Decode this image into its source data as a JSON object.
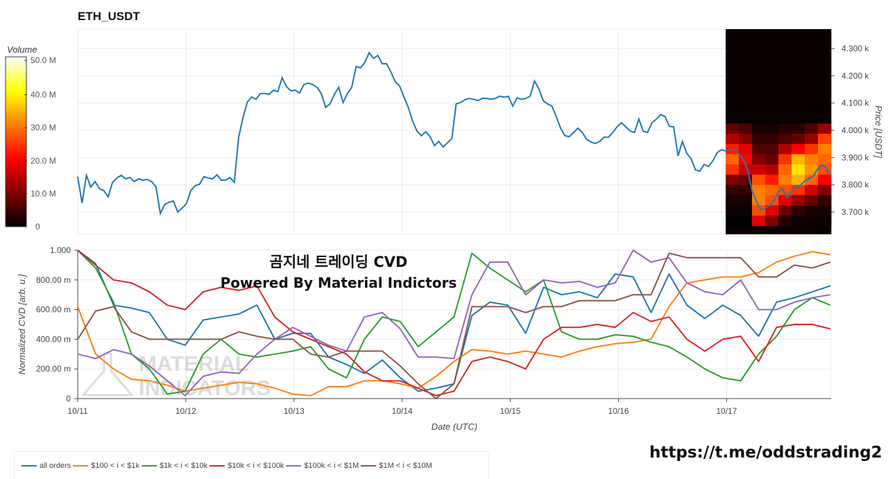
{
  "title": "ETH_USDT",
  "overlay_title": "곰지네 트레이딩 CVD",
  "overlay_subtitle": "Powered By Material Indictors",
  "watermark": "MATERIAL INDICATORS",
  "url": "https://t.me/oddstrading2",
  "colors": {
    "all": "#1f77b4",
    "o": "#ff7f0e",
    "g": "#2ca02c",
    "r": "#d62728",
    "p": "#9467bd",
    "b": "#8c564b"
  },
  "chart_data": [
    {
      "type": "line",
      "title": "ETH_USDT",
      "ylabel": "Price [USDT]",
      "x_range_hours": [
        0,
        167
      ],
      "x_start": "10/11",
      "ylim": [
        3630,
        4370
      ],
      "yticks": [
        3700,
        3800,
        3900,
        4000,
        4100,
        4200,
        4300
      ],
      "ytick_labels": [
        "3.700 k",
        "3.800 k",
        "3.900 k",
        "4.000 k",
        "4.100 k",
        "4.200 k",
        "4.300 k"
      ],
      "values": [
        3830,
        3733,
        3835,
        3792,
        3812,
        3786,
        3779,
        3756,
        3809,
        3825,
        3835,
        3822,
        3827,
        3812,
        3822,
        3817,
        3820,
        3812,
        3792,
        3695,
        3728,
        3736,
        3741,
        3700,
        3715,
        3731,
        3779,
        3797,
        3802,
        3830,
        3825,
        3822,
        3837,
        3817,
        3817,
        3827,
        3809,
        3975,
        4046,
        4104,
        4122,
        4114,
        4135,
        4135,
        4132,
        4147,
        4142,
        4193,
        4160,
        4145,
        4147,
        4137,
        4168,
        4173,
        4168,
        4158,
        4135,
        4084,
        4097,
        4132,
        4158,
        4102,
        4135,
        4158,
        4234,
        4229,
        4249,
        4285,
        4264,
        4275,
        4244,
        4244,
        4214,
        4178,
        4163,
        4122,
        4084,
        4033,
        3997,
        3980,
        3995,
        3977,
        3944,
        3959,
        3939,
        3954,
        3970,
        4097,
        4102,
        4112,
        4117,
        4114,
        4109,
        4117,
        4117,
        4114,
        4117,
        4125,
        4122,
        4125,
        4089,
        4119,
        4114,
        4117,
        4125,
        4181,
        4153,
        4109,
        4097,
        4089,
        4051,
        4008,
        3980,
        3977,
        3992,
        4008,
        3992,
        3967,
        3957,
        3952,
        3959,
        3975,
        3975,
        3992,
        4013,
        4028,
        4013,
        3997,
        3992,
        4041,
        3997,
        3992,
        4028,
        4041,
        4058,
        4051,
        4015,
        4013,
        3906,
        3959,
        3916,
        3896,
        3855,
        3850,
        3875,
        3867,
        3888,
        3918,
        3929,
        3924,
        3929,
        3931,
        3913,
        3893,
        3855,
        3779,
        3741,
        3708,
        3715,
        3723,
        3741,
        3774,
        3787,
        3754,
        3774,
        3792,
        3797,
        3812,
        3822,
        3830,
        3855,
        3873,
        3863,
        3830
      ],
      "colorbar": {
        "title": "Volume",
        "ticks": [
          "0",
          "10.0 M",
          "20.0 M",
          "30.0 M",
          "40.0 M",
          "50.0 M"
        ],
        "range": [
          0,
          50
        ]
      },
      "heatmap": {
        "x_start": "10/17",
        "price_top": 4025,
        "price_step": 37.5,
        "units": "M",
        "z": [
          [
            8,
            6,
            2,
            2,
            3,
            3,
            6,
            12
          ],
          [
            14,
            10,
            4,
            4,
            6,
            8,
            12,
            25
          ],
          [
            22,
            18,
            6,
            6,
            14,
            20,
            24,
            30
          ],
          [
            28,
            20,
            10,
            8,
            24,
            34,
            30,
            28
          ],
          [
            24,
            16,
            16,
            14,
            28,
            38,
            32,
            26
          ],
          [
            10,
            8,
            26,
            22,
            30,
            34,
            28,
            20
          ],
          [
            4,
            4,
            30,
            28,
            26,
            24,
            16,
            10
          ],
          [
            2,
            2,
            30,
            26,
            18,
            12,
            8,
            4
          ],
          [
            1,
            1,
            26,
            18,
            8,
            4,
            2,
            2
          ],
          [
            0,
            0,
            18,
            10,
            3,
            1,
            1,
            1
          ]
        ]
      }
    },
    {
      "type": "line",
      "xlabel": "Date (UTC)",
      "ylabel": "Normalized CVD [arb. u.]",
      "ylim": [
        0,
        1
      ],
      "ytick_labels": [
        "0",
        "200.00 m",
        "400.00 m",
        "600.00 m",
        "800.00 m",
        "1.000"
      ],
      "x_ticks": [
        "10/11",
        "10/12",
        "10/13",
        "10/14",
        "10/15",
        "10/16",
        "10/17"
      ],
      "x_range_hours": [
        0,
        167
      ],
      "series": [
        {
          "name": "all orders",
          "key": "all",
          "values": [
            1.0,
            0.91,
            0.63,
            0.61,
            0.58,
            0.4,
            0.36,
            0.53,
            0.55,
            0.57,
            0.63,
            0.4,
            0.44,
            0.44,
            0.28,
            0.23,
            0.17,
            0.26,
            0.14,
            0.05,
            0.07,
            0.1,
            0.56,
            0.65,
            0.63,
            0.44,
            0.75,
            0.7,
            0.72,
            0.68,
            0.84,
            0.82,
            0.58,
            0.84,
            0.63,
            0.54,
            0.63,
            0.56,
            0.42,
            0.65,
            0.68,
            0.72,
            0.76
          ]
        },
        {
          "name": "$100 < i < $1k",
          "key": "o",
          "values": [
            0.62,
            0.3,
            0.2,
            0.13,
            0.12,
            0.09,
            0.05,
            0.07,
            0.09,
            0.11,
            0.1,
            0.07,
            0.03,
            0.02,
            0.08,
            0.08,
            0.12,
            0.12,
            0.1,
            0.07,
            0.15,
            0.25,
            0.33,
            0.32,
            0.3,
            0.32,
            0.3,
            0.28,
            0.32,
            0.35,
            0.37,
            0.38,
            0.4,
            0.62,
            0.78,
            0.8,
            0.82,
            0.82,
            0.85,
            0.92,
            0.96,
            0.99,
            0.97
          ]
        },
        {
          "name": "$1k < i < $10k",
          "key": "g",
          "values": [
            1.0,
            0.88,
            0.65,
            0.3,
            0.2,
            0.03,
            0.05,
            0.3,
            0.4,
            0.3,
            0.28,
            0.3,
            0.32,
            0.35,
            0.2,
            0.14,
            0.4,
            0.55,
            0.52,
            0.35,
            0.45,
            0.55,
            0.98,
            0.88,
            0.8,
            0.72,
            0.8,
            0.45,
            0.4,
            0.4,
            0.43,
            0.42,
            0.38,
            0.35,
            0.28,
            0.2,
            0.14,
            0.12,
            0.3,
            0.42,
            0.6,
            0.68,
            0.63
          ]
        },
        {
          "name": "$10k < i < $100k",
          "key": "r",
          "values": [
            1.0,
            0.9,
            0.8,
            0.78,
            0.72,
            0.63,
            0.6,
            0.72,
            0.75,
            0.73,
            0.76,
            0.55,
            0.45,
            0.4,
            0.35,
            0.3,
            0.18,
            0.12,
            0.12,
            0.07,
            0.02,
            0.05,
            0.25,
            0.28,
            0.25,
            0.2,
            0.4,
            0.48,
            0.48,
            0.5,
            0.48,
            0.58,
            0.52,
            0.55,
            0.4,
            0.32,
            0.4,
            0.42,
            0.25,
            0.48,
            0.5,
            0.5,
            0.47
          ]
        },
        {
          "name": "$100k < i < $1M",
          "key": "p",
          "values": [
            0.3,
            0.27,
            0.33,
            0.3,
            0.22,
            0.12,
            0.02,
            0.15,
            0.18,
            0.17,
            0.3,
            0.4,
            0.48,
            0.42,
            0.36,
            0.32,
            0.55,
            0.58,
            0.47,
            0.28,
            0.28,
            0.27,
            0.7,
            0.92,
            0.92,
            0.7,
            0.8,
            0.78,
            0.79,
            0.75,
            0.78,
            1.0,
            0.92,
            0.95,
            0.78,
            0.72,
            0.7,
            0.8,
            0.6,
            0.6,
            0.65,
            0.68,
            0.7
          ]
        },
        {
          "name": "$1M < i < $10M",
          "key": "b",
          "values": [
            0.4,
            0.59,
            0.62,
            0.45,
            0.4,
            0.4,
            0.4,
            0.4,
            0.4,
            0.45,
            0.42,
            0.4,
            0.4,
            0.3,
            0.28,
            0.32,
            0.32,
            0.32,
            0.22,
            0.1,
            0.0,
            0.1,
            0.62,
            0.62,
            0.62,
            0.58,
            0.62,
            0.62,
            0.66,
            0.66,
            0.66,
            0.7,
            0.7,
            0.98,
            0.95,
            0.95,
            0.95,
            0.95,
            0.82,
            0.82,
            0.9,
            0.88,
            0.92
          ]
        }
      ]
    }
  ]
}
